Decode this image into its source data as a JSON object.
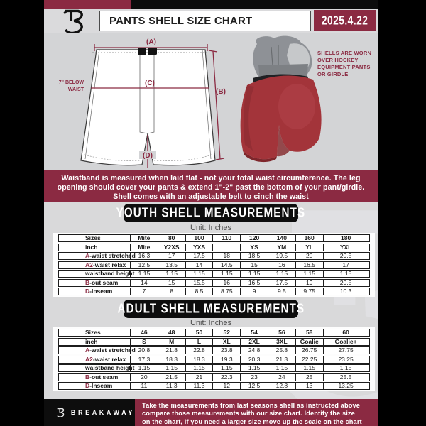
{
  "page": {
    "title": "PANTS SHELL SIZE CHART",
    "date": "2025.4.22",
    "colors": {
      "maroon": "#8b2a42",
      "black": "#0d0d0d",
      "background_gray": "#d9d9da",
      "shell_red": "#a3343a"
    }
  },
  "diagram": {
    "label_a": "(A)",
    "label_b": "(B)",
    "label_c": "(C)",
    "label_d": "(D)",
    "waist_note_line1": "7\" BELOW",
    "waist_note_line2": "WAIST"
  },
  "photo_note": {
    "line1": "SHELLS ARE WORN",
    "line2": "OVER HOCKEY",
    "line3": "EQUIPMENT PANTS",
    "line4": "OR GIRDLE"
  },
  "info_banner": {
    "line1": "Waistband is measured when laid flat - not your total waist circumference. The leg",
    "line2": "opening should cover your pants & extend 1\"-2\" past the bottom of your pant/girdle.",
    "line3": "Shell comes with an adjustable belt to cinch the waist"
  },
  "youth": {
    "title": "YOUTH SHELL MEASUREMENTS",
    "unit": "Unit: Inches",
    "rows": [
      {
        "prefix": "",
        "label": "Sizes",
        "bold": true,
        "values": [
          "Mite",
          "80",
          "100",
          "110",
          "120",
          "140",
          "160",
          "180"
        ]
      },
      {
        "prefix": "",
        "label": "inch",
        "bold": true,
        "values": [
          "Mite",
          "Y2XS",
          "YXS",
          "",
          "YS",
          "YM",
          "YL",
          "YXL"
        ]
      },
      {
        "prefix": "A",
        "label": "-waist stretched",
        "bold": false,
        "values": [
          "16.3",
          "17",
          "17.5",
          "18",
          "18.5",
          "19.5",
          "20",
          "20.5"
        ]
      },
      {
        "prefix": "A2",
        "label": "-waist relax",
        "bold": false,
        "values": [
          "12.5",
          "13.5",
          "14",
          "14.5",
          "15",
          "16",
          "16.5",
          "17"
        ]
      },
      {
        "prefix": "",
        "label": "waistband height",
        "bold": false,
        "values": [
          "1.15",
          "1.15",
          "1.15",
          "1.15",
          "1.15",
          "1.15",
          "1.15",
          "1.15"
        ]
      },
      {
        "prefix": "B",
        "label": "-out seam",
        "bold": false,
        "values": [
          "14",
          "15",
          "15.5",
          "16",
          "16.5",
          "17.5",
          "19",
          "20.5"
        ]
      },
      {
        "prefix": "D",
        "label": "-Inseam",
        "bold": false,
        "values": [
          "7",
          "8",
          "8.5",
          "8.75",
          "9",
          "9.5",
          "9.75",
          "10.3"
        ]
      }
    ]
  },
  "adult": {
    "title": "ADULT SHELL MEASUREMENTS",
    "unit": "Unit: Inches",
    "rows": [
      {
        "prefix": "",
        "label": "Sizes",
        "bold": true,
        "values": [
          "46",
          "48",
          "50",
          "52",
          "54",
          "56",
          "58",
          "60"
        ]
      },
      {
        "prefix": "",
        "label": "inch",
        "bold": true,
        "values": [
          "S",
          "M",
          "L",
          "XL",
          "2XL",
          "3XL",
          "Goalie",
          "Goalie+"
        ]
      },
      {
        "prefix": "A",
        "label": "-waist stretched",
        "bold": false,
        "values": [
          "20.8",
          "21.8",
          "22.8",
          "23.8",
          "24.8",
          "25.8",
          "26.75",
          "27.75"
        ]
      },
      {
        "prefix": "A2",
        "label": "-waist relax",
        "bold": false,
        "values": [
          "17.3",
          "18.3",
          "18.3",
          "19.3",
          "20.3",
          "21.3",
          "22.25",
          "23.25"
        ]
      },
      {
        "prefix": "",
        "label": "waistband height",
        "bold": false,
        "values": [
          "1.15",
          "1.15",
          "1.15",
          "1.15",
          "1.15",
          "1.15",
          "1.15",
          "1.15"
        ]
      },
      {
        "prefix": "B",
        "label": "-out seam",
        "bold": false,
        "values": [
          "20",
          "21.5",
          "21",
          "22.3",
          "23",
          "24",
          "25",
          "25.5"
        ]
      },
      {
        "prefix": "D",
        "label": "-Inseam",
        "bold": false,
        "values": [
          "11",
          "11.3",
          "11.3",
          "12",
          "12.5",
          "12.8",
          "13",
          "13.25"
        ]
      }
    ]
  },
  "footer": {
    "brand": "BREAKAWAY",
    "line1": "Take the measurements from last seasons shell as instructed above",
    "line2": "compare those measurements  with our size chart. Identify the size",
    "line3": "on the chart, if you need a larger size move up the scale on the chart"
  }
}
